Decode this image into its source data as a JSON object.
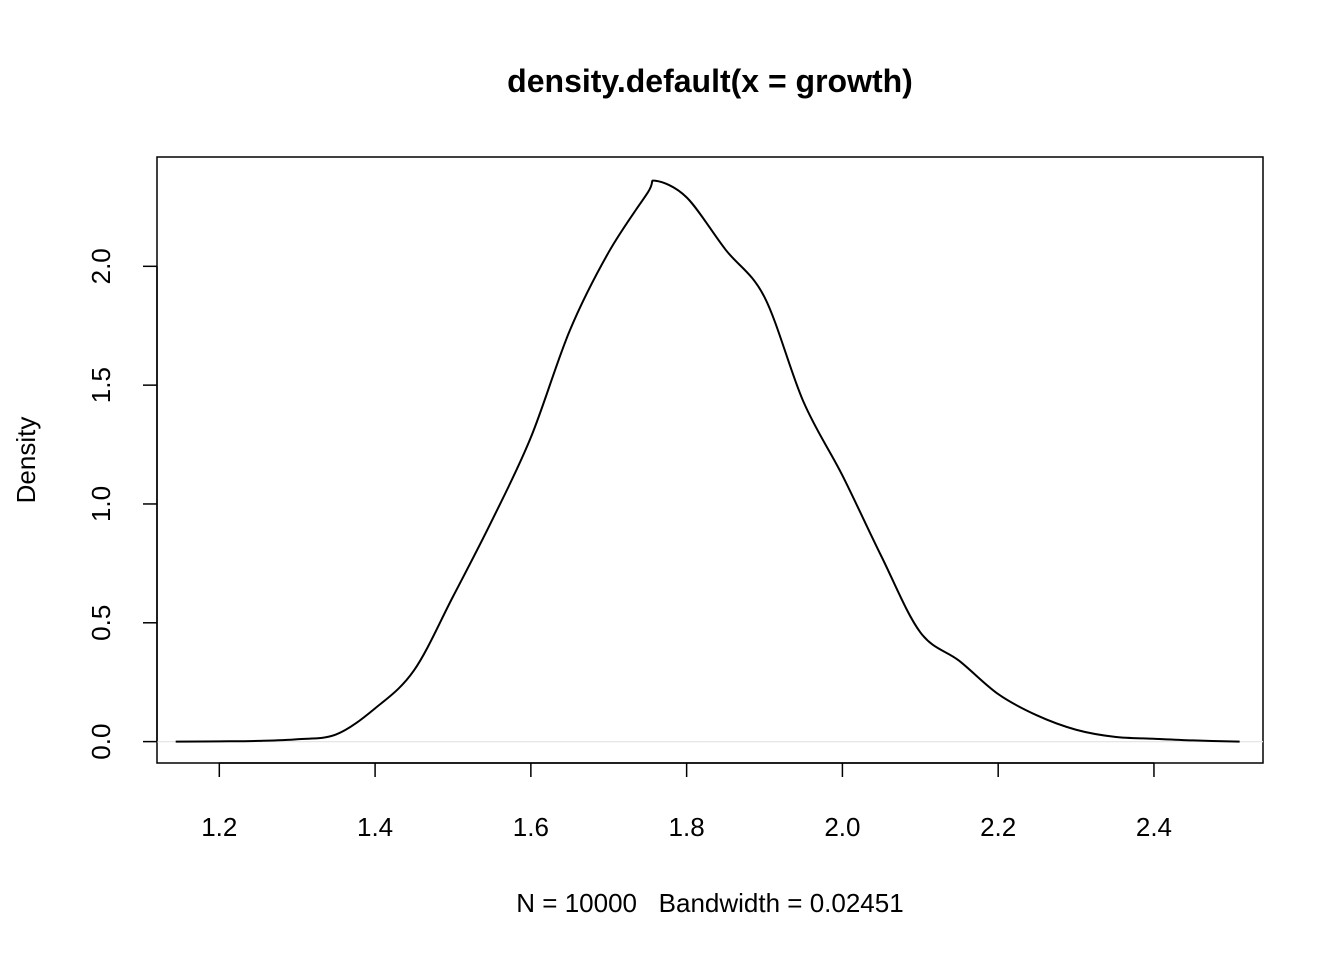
{
  "chart_data": {
    "type": "line",
    "title": "density.default(x = growth)",
    "xlabel": "N = 10000   Bandwidth = 0.02451",
    "ylabel": "Density",
    "xlim": [
      1.12,
      2.54
    ],
    "ylim": [
      -0.09,
      2.46
    ],
    "xticks": [
      "1.2",
      "1.4",
      "1.6",
      "1.8",
      "2.0",
      "2.2",
      "2.4"
    ],
    "yticks": [
      "0.0",
      "0.5",
      "1.0",
      "1.5",
      "2.0"
    ],
    "grid": false,
    "baseline_color": "#e6e6e6",
    "series": [
      {
        "name": "density",
        "color": "#000000",
        "x": [
          1.144,
          1.2,
          1.25,
          1.3,
          1.35,
          1.4,
          1.45,
          1.5,
          1.55,
          1.6,
          1.65,
          1.7,
          1.75,
          1.76,
          1.8,
          1.85,
          1.9,
          1.95,
          2.0,
          2.05,
          2.1,
          2.15,
          2.2,
          2.25,
          2.3,
          2.35,
          2.4,
          2.45,
          2.51
        ],
        "y": [
          0.0,
          0.001,
          0.003,
          0.01,
          0.03,
          0.14,
          0.3,
          0.61,
          0.93,
          1.28,
          1.73,
          2.06,
          2.31,
          2.36,
          2.29,
          2.07,
          1.87,
          1.43,
          1.12,
          0.78,
          0.46,
          0.34,
          0.2,
          0.11,
          0.05,
          0.02,
          0.012,
          0.005,
          0.0
        ]
      }
    ]
  }
}
